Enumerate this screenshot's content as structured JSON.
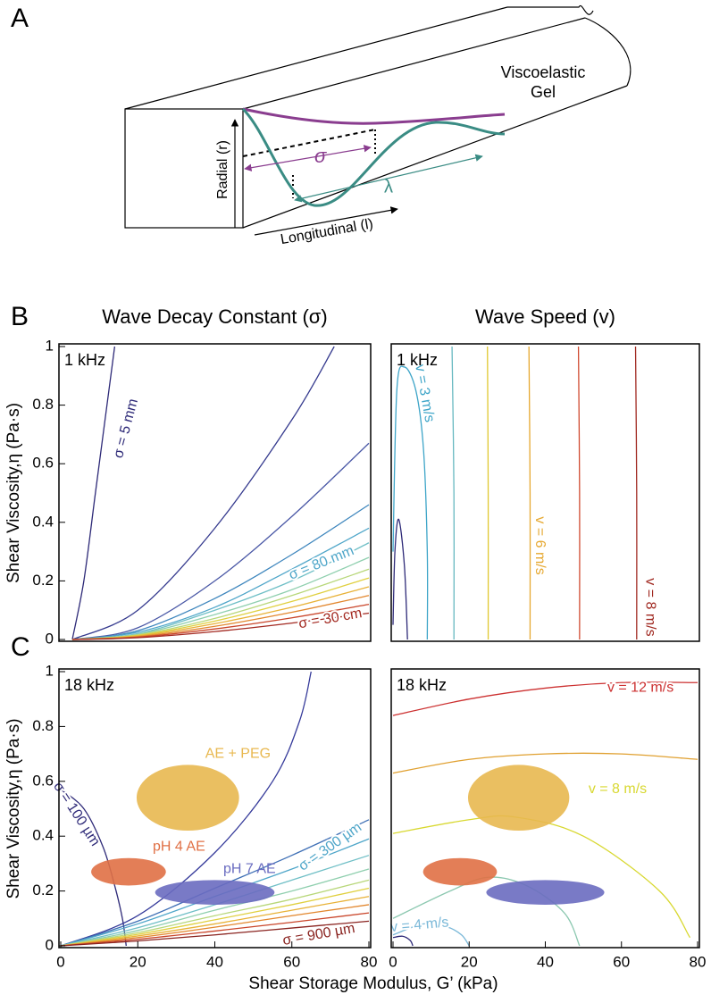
{
  "panel_labels": [
    "A",
    "B",
    "C"
  ],
  "diagram": {
    "material": [
      "Viscoelastic",
      "Gel"
    ],
    "radial": "Radial (r)",
    "longitudinal": "Longitudinal (l)",
    "decay": "σ",
    "wavelength": "λ"
  },
  "x_label": "Shear Storage Modulus, G’ (kPa)",
  "chart_data": [
    {
      "type": "line",
      "title": "Wave Decay Constant (σ)",
      "annotation": "1 kHz",
      "ylabel": "Shear Viscosity,η (Pa·s)",
      "xlim": [
        0,
        80
      ],
      "ylim": [
        0,
        1
      ],
      "yticks": [
        0,
        0.2,
        0.4,
        0.6,
        0.8,
        1
      ],
      "series": [
        {
          "name": "σ = 5 mm",
          "color": "#2e2a78",
          "x": [
            3,
            6,
            9,
            12,
            14
          ],
          "y": [
            0,
            0.2,
            0.5,
            0.8,
            1
          ]
        },
        {
          "color": "#353a8e",
          "x": [
            3,
            20,
            40,
            60,
            71
          ],
          "y": [
            0,
            0.1,
            0.38,
            0.75,
            1
          ]
        },
        {
          "color": "#4a58a6",
          "x": [
            3,
            20,
            40,
            60,
            80
          ],
          "y": [
            0,
            0.04,
            0.2,
            0.42,
            0.67
          ]
        },
        {
          "color": "#3e86bd",
          "x": [
            3,
            20,
            40,
            60,
            80
          ],
          "y": [
            0,
            0.03,
            0.14,
            0.29,
            0.46
          ]
        },
        {
          "name": "σ = 80 mm",
          "color": "#4fa6c9",
          "x": [
            3,
            20,
            40,
            60,
            80
          ],
          "y": [
            0,
            0.025,
            0.11,
            0.24,
            0.38
          ]
        },
        {
          "color": "#6fbfc6",
          "x": [
            3,
            20,
            40,
            60,
            80
          ],
          "y": [
            0,
            0.02,
            0.1,
            0.2,
            0.33
          ]
        },
        {
          "color": "#8fcfae",
          "x": [
            3,
            20,
            40,
            60,
            80
          ],
          "y": [
            0,
            0.018,
            0.085,
            0.17,
            0.28
          ]
        },
        {
          "color": "#b8d77a",
          "x": [
            3,
            20,
            40,
            60,
            80
          ],
          "y": [
            0,
            0.016,
            0.072,
            0.15,
            0.24
          ]
        },
        {
          "color": "#e0d040",
          "x": [
            3,
            20,
            40,
            60,
            80
          ],
          "y": [
            0,
            0.014,
            0.063,
            0.13,
            0.21
          ]
        },
        {
          "color": "#e8b238",
          "x": [
            3,
            20,
            40,
            60,
            80
          ],
          "y": [
            0,
            0.012,
            0.054,
            0.11,
            0.18
          ]
        },
        {
          "color": "#e2872e",
          "x": [
            3,
            20,
            40,
            60,
            80
          ],
          "y": [
            0,
            0.01,
            0.045,
            0.093,
            0.15
          ]
        },
        {
          "color": "#c9452a",
          "x": [
            3,
            20,
            40,
            60,
            80
          ],
          "y": [
            0,
            0.008,
            0.036,
            0.074,
            0.12
          ]
        },
        {
          "name": "σ = 30 cm",
          "color": "#a32a22",
          "x": [
            3,
            20,
            40,
            60,
            80
          ],
          "y": [
            0,
            0.006,
            0.027,
            0.056,
            0.09
          ]
        }
      ]
    },
    {
      "type": "line",
      "title": "Wave Speed (v)",
      "annotation": "1 kHz",
      "xlim": [
        0,
        80
      ],
      "ylim": [
        0,
        1
      ],
      "series": [
        {
          "color": "#2e2a78",
          "x": [
            0,
            0.5,
            1.5,
            3,
            3.8
          ],
          "y": [
            0.05,
            0.3,
            0.41,
            0.25,
            0
          ]
        },
        {
          "name": "v = 3 m/s",
          "color": "#3ea5c8",
          "x": [
            0,
            1,
            3,
            6,
            8,
            9,
            9
          ],
          "y": [
            0.3,
            0.85,
            0.93,
            0.85,
            0.65,
            0.3,
            0
          ]
        },
        {
          "color": "#66b8c0",
          "x": [
            15.5,
            16,
            16
          ],
          "y": [
            1,
            0.5,
            0
          ]
        },
        {
          "color": "#e0c830",
          "x": [
            24.8,
            25,
            25
          ],
          "y": [
            1,
            0.5,
            0
          ]
        },
        {
          "name": "v = 6 m/s",
          "color": "#e6a830",
          "x": [
            35.7,
            36,
            36
          ],
          "y": [
            1,
            0.5,
            0
          ]
        },
        {
          "color": "#d04a30",
          "x": [
            48.7,
            49,
            49
          ],
          "y": [
            1,
            0.5,
            0
          ]
        },
        {
          "name": "v = 8 m/s",
          "color": "#a02820",
          "x": [
            63.7,
            64,
            64
          ],
          "y": [
            1,
            0.5,
            0
          ]
        }
      ]
    },
    {
      "type": "line",
      "annotation": "18 kHz",
      "ylabel": "Shear Viscosity,η (Pa·s)",
      "xlim": [
        0,
        80
      ],
      "ylim": [
        0,
        1
      ],
      "xticks": [
        0,
        20,
        40,
        60,
        80
      ],
      "yticks": [
        0,
        0.2,
        0.4,
        0.6,
        0.8,
        1
      ],
      "series": [
        {
          "name": "σ = 100 µm",
          "color": "#2e2a78",
          "x": [
            0,
            6,
            11,
            14,
            16,
            17
          ],
          "y": [
            0.57,
            0.5,
            0.36,
            0.22,
            0.1,
            0
          ]
        },
        {
          "color": "#353a9a",
          "x": [
            0,
            20,
            40,
            55,
            62,
            65
          ],
          "y": [
            0,
            0.11,
            0.34,
            0.6,
            0.82,
            1
          ]
        },
        {
          "color": "#3e6fb5",
          "x": [
            0,
            20,
            40,
            60,
            80
          ],
          "y": [
            0,
            0.09,
            0.21,
            0.33,
            0.46
          ]
        },
        {
          "name": "σ = 300 µm",
          "color": "#4fa6c9",
          "x": [
            0,
            20,
            40,
            60,
            80
          ],
          "y": [
            0,
            0.08,
            0.18,
            0.28,
            0.39
          ]
        },
        {
          "color": "#6fbfc6",
          "x": [
            0,
            20,
            40,
            60,
            80
          ],
          "y": [
            0,
            0.066,
            0.15,
            0.24,
            0.33
          ]
        },
        {
          "color": "#8fcfae",
          "x": [
            0,
            20,
            40,
            60,
            80
          ],
          "y": [
            0,
            0.056,
            0.13,
            0.2,
            0.28
          ]
        },
        {
          "color": "#b8d77a",
          "x": [
            0,
            20,
            40,
            60,
            80
          ],
          "y": [
            0,
            0.048,
            0.11,
            0.17,
            0.24
          ]
        },
        {
          "color": "#e0d040",
          "x": [
            0,
            20,
            40,
            60,
            80
          ],
          "y": [
            0,
            0.042,
            0.095,
            0.15,
            0.21
          ]
        },
        {
          "color": "#e8b238",
          "x": [
            0,
            20,
            40,
            60,
            80
          ],
          "y": [
            0,
            0.036,
            0.08,
            0.13,
            0.18
          ]
        },
        {
          "color": "#e2872e",
          "x": [
            0,
            20,
            40,
            60,
            80
          ],
          "y": [
            0,
            0.03,
            0.068,
            0.11,
            0.15
          ]
        },
        {
          "color": "#c9452a",
          "x": [
            0,
            20,
            40,
            60,
            80
          ],
          "y": [
            0,
            0.024,
            0.054,
            0.086,
            0.12
          ]
        },
        {
          "name": "σ = 900 µm",
          "color": "#8a2420",
          "x": [
            0,
            20,
            40,
            60,
            80
          ],
          "y": [
            0,
            0.018,
            0.04,
            0.065,
            0.09
          ]
        }
      ],
      "ellipses": [
        {
          "name": "AE + PEG",
          "color": "#e8b850",
          "cx": 33,
          "cy": 0.54,
          "rx": 13.3,
          "ry": 0.12
        },
        {
          "name": "pH 4 AE",
          "color": "#e07045",
          "cx": 17.6,
          "cy": 0.27,
          "rx": 9.7,
          "ry": 0.05
        },
        {
          "name": "pH 7 AE",
          "color": "#6a6cc0",
          "cx": 40,
          "cy": 0.195,
          "rx": 15.5,
          "ry": 0.045
        }
      ]
    },
    {
      "type": "line",
      "annotation": "18 kHz",
      "xlim": [
        0,
        80
      ],
      "ylim": [
        0,
        1
      ],
      "xticks": [
        0,
        20,
        40,
        60,
        80
      ],
      "series": [
        {
          "color": "#2e2a78",
          "x": [
            0,
            2.5,
            4.5,
            5.2
          ],
          "y": [
            0.03,
            0.035,
            0.02,
            0
          ]
        },
        {
          "name": "v = 4 m/s",
          "color": "#7ab8d8",
          "x": [
            0,
            8,
            14,
            18,
            20
          ],
          "y": [
            0.04,
            0.08,
            0.07,
            0.04,
            0
          ]
        },
        {
          "color": "#8cc8b0",
          "x": [
            0,
            15,
            25,
            35,
            45,
            49
          ],
          "y": [
            0.1,
            0.2,
            0.25,
            0.22,
            0.12,
            0
          ]
        },
        {
          "name": "v = 8 m/s",
          "color": "#d8d830",
          "x": [
            0,
            20,
            32,
            50,
            70,
            78
          ],
          "y": [
            0.41,
            0.46,
            0.47,
            0.4,
            0.2,
            0.03
          ]
        },
        {
          "color": "#e0a030",
          "x": [
            0,
            20,
            40,
            60,
            80
          ],
          "y": [
            0.63,
            0.68,
            0.7,
            0.7,
            0.68
          ]
        },
        {
          "name": "v = 12 m/s",
          "color": "#cc3030",
          "x": [
            0,
            20,
            40,
            60,
            80
          ],
          "y": [
            0.84,
            0.9,
            0.94,
            0.96,
            0.96
          ]
        }
      ],
      "ellipses": [
        {
          "color": "#e8b850",
          "cx": 33,
          "cy": 0.54,
          "rx": 13.3,
          "ry": 0.12
        },
        {
          "color": "#e07045",
          "cx": 17.6,
          "cy": 0.27,
          "rx": 9.7,
          "ry": 0.05
        },
        {
          "color": "#6a6cc0",
          "cx": 40,
          "cy": 0.195,
          "rx": 15.5,
          "ry": 0.045
        }
      ]
    }
  ]
}
